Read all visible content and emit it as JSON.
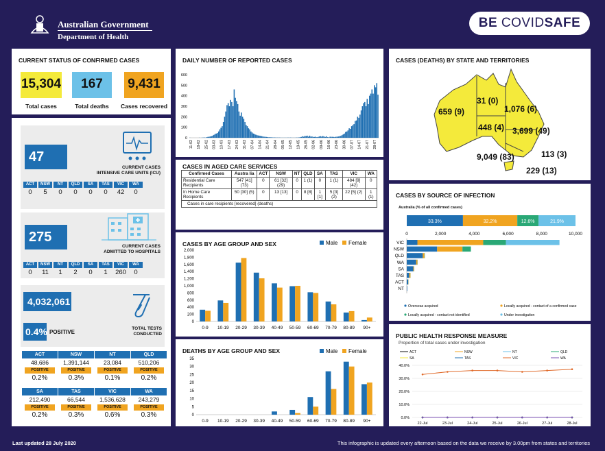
{
  "header": {
    "gov_title": "Australian Government",
    "dept_title": "Department of Health",
    "covidsafe_be": "BE",
    "covidsafe_word1": "COVID",
    "covidsafe_word2": "SAFE"
  },
  "current_status": {
    "title": "CURRENT STATUS OF CONFIRMED CASES",
    "total_cases": "15,304",
    "total_cases_label": "Total cases",
    "total_deaths": "167",
    "total_deaths_label": "Total deaths",
    "recovered": "9,431",
    "recovered_label": "Cases recovered",
    "colors": {
      "cases": "#f4ea3b",
      "deaths": "#6cc1e8",
      "recovered": "#f0a420"
    }
  },
  "icu": {
    "value": "47",
    "caption1": "CURRENT CASES",
    "caption2": "INTENSIVE CARE UNITS (ICU)",
    "states": [
      "ACT",
      "NSW",
      "NT",
      "QLD",
      "SA",
      "TAS",
      "VIC",
      "WA"
    ],
    "values": [
      "0",
      "5",
      "0",
      "0",
      "0",
      "0",
      "42",
      "0"
    ]
  },
  "hospital": {
    "value": "275",
    "caption1": "CURRENT CASES",
    "caption2": "ADMITTED TO HOSPITALS",
    "states": [
      "ACT",
      "NSW",
      "NT",
      "QLD",
      "SA",
      "TAS",
      "VIC",
      "WA"
    ],
    "values": [
      "0",
      "11",
      "1",
      "2",
      "0",
      "1",
      "260",
      "0"
    ]
  },
  "tests": {
    "total": "4,032,061",
    "positive_pct": "0.4%",
    "positive_label": "POSITIVE",
    "caption1": "TOTAL TESTS",
    "caption2": "CONDUCTED",
    "positive_tag": "POSITIVE",
    "row1": [
      {
        "state": "ACT",
        "tests": "48,686",
        "pct": "0.2%"
      },
      {
        "state": "NSW",
        "tests": "1,391,144",
        "pct": "0.3%"
      },
      {
        "state": "NT",
        "tests": "23,084",
        "pct": "0.1%"
      },
      {
        "state": "QLD",
        "tests": "510,206",
        "pct": "0.2%"
      }
    ],
    "row2": [
      {
        "state": "SA",
        "tests": "212,490",
        "pct": "0.2%"
      },
      {
        "state": "TAS",
        "tests": "66,544",
        "pct": "0.3%"
      },
      {
        "state": "VIC",
        "tests": "1,536,628",
        "pct": "0.6%"
      },
      {
        "state": "WA",
        "tests": "243,279",
        "pct": "0.3%"
      }
    ]
  },
  "daily": {
    "title": "DAILY NUMBER OF REPORTED CASES",
    "x_labels": [
      "11-02",
      "18-02",
      "25-02",
      "03-03",
      "10-03",
      "17-03",
      "24-03",
      "31-03",
      "07-04",
      "14-04",
      "21-04",
      "28-04",
      "05-05",
      "12-05",
      "19-05",
      "26-05",
      "02-06",
      "09-06",
      "16-06",
      "23-06",
      "30-06",
      "07-07",
      "14-07",
      "21-07",
      "28-07"
    ],
    "y_ticks": [
      "0",
      "100",
      "200",
      "300",
      "400",
      "500",
      "600"
    ]
  },
  "aged": {
    "title": "CASES IN AGED CARE SERVICES",
    "headers": [
      "Confirmed Cases",
      "Austra lia",
      "ACT",
      "NSW",
      "NT",
      "QLD",
      "SA",
      "TAS",
      "VIC",
      "WA"
    ],
    "rows": [
      [
        "Residential Care Recipients",
        "547 [41] (73)",
        "0",
        "61 [32] (29)",
        "0",
        "1 (1)",
        "0",
        "1 (1)",
        "484 [9] (42)",
        "0"
      ],
      [
        "In Home Care Recipients",
        "50 [30] (5)",
        "0",
        "13 [13]",
        "0",
        "8 [8]",
        "1 [1]",
        "5 [3] (2)",
        "22 [5] (2)",
        "1 (1)"
      ]
    ],
    "note": "Cases in care recipients [recovered] (deaths)"
  },
  "age_cases": {
    "title": "CASES BY AGE GROUP AND SEX",
    "male_label": "Male",
    "female_label": "Female",
    "y_ticks": [
      "0",
      "200",
      "400",
      "600",
      "800",
      "1,000",
      "1,200",
      "1,400",
      "1,600",
      "1,800",
      "2,000"
    ]
  },
  "age_deaths": {
    "title": "DEATHS BY AGE GROUP AND SEX",
    "male_label": "Male",
    "female_label": "Female",
    "y_ticks": [
      "0",
      "5",
      "10",
      "15",
      "20",
      "25",
      "30",
      "35"
    ]
  },
  "map": {
    "title": "CASES (DEATHS) BY STATE AND TERRITORIES",
    "labels": {
      "WA": "659 (9)",
      "NT": "31 (0)",
      "QLD": "1,076 (6)",
      "SA": "448 (4)",
      "NSW": "3,699 (49)",
      "ACT": "113 (3)",
      "VIC": "9,049 (83)",
      "TAS": "229 (13)"
    }
  },
  "source": {
    "title": "CASES BY SOURCE OF INFECTION",
    "subtitle": "Australia (% of all confirmed cases)",
    "pcts": [
      "33.3%",
      "32.2%",
      "12.6%",
      "21.9%"
    ],
    "x_ticks": [
      "0",
      "2,000",
      "4,000",
      "6,000",
      "8,000",
      "10,000"
    ],
    "states": [
      "VIC",
      "NSW",
      "QLD",
      "WA",
      "SA",
      "TAS",
      "ACT",
      "NT"
    ],
    "legend": [
      "Overseas acquired",
      "Locally acquired - contact of a confirmed case",
      "Locally acquired - contact not identified",
      "Under investigation"
    ],
    "colors": [
      "#1f6fb2",
      "#f0a420",
      "#2aa876",
      "#6cc1e8"
    ]
  },
  "response": {
    "title": "PUBLIC HEALTH RESPONSE MEASURE",
    "subtitle": "Proportion of total cases under investigation",
    "legend": [
      "ACT",
      "NSW",
      "NT",
      "QLD",
      "SA",
      "TAS",
      "VIC",
      "WA"
    ],
    "y_ticks": [
      "0.0%",
      "10.0%",
      "20.0%",
      "30.0%",
      "40.0%"
    ],
    "x_labels": [
      "22-Jul",
      "23-Jul",
      "24-Jul",
      "25-Jul",
      "26-Jul",
      "27-Jul",
      "28-Jul"
    ]
  },
  "footer": {
    "updated": "Last updated 28 July 2020",
    "note": "This infographic is updated every afternoon based on the data we receive by 3.00pm from states and territories"
  },
  "chart_data": [
    {
      "type": "bar",
      "title": "DAILY NUMBER OF REPORTED CASES",
      "ylim": [
        0,
        600
      ],
      "values": [
        1,
        0,
        0,
        0,
        0,
        0,
        0,
        0,
        1,
        0,
        1,
        2,
        3,
        1,
        5,
        8,
        10,
        12,
        15,
        20,
        27,
        35,
        40,
        45,
        60,
        80,
        95,
        110,
        150,
        200,
        250,
        310,
        330,
        300,
        360,
        340,
        300,
        460,
        380,
        350,
        320,
        250,
        210,
        240,
        200,
        180,
        150,
        120,
        110,
        90,
        80,
        60,
        50,
        40,
        35,
        30,
        25,
        22,
        20,
        18,
        15,
        12,
        10,
        9,
        8,
        6,
        5,
        5,
        4,
        3,
        3,
        3,
        2,
        2,
        2,
        2,
        1,
        1,
        1,
        1,
        1,
        1,
        2,
        1,
        2,
        1,
        1,
        1,
        1,
        2,
        2,
        3,
        5,
        8,
        14,
        10,
        17,
        16,
        20,
        10,
        20,
        11,
        12,
        8,
        8,
        10,
        6,
        8,
        12,
        15,
        11,
        16,
        12,
        8,
        14,
        6,
        4,
        10,
        9,
        9,
        8,
        7,
        10,
        10,
        12,
        15,
        18,
        25,
        32,
        40,
        55,
        60,
        70,
        90,
        85,
        110,
        120,
        130,
        160,
        165,
        200,
        190,
        220,
        260,
        300,
        330,
        340,
        300,
        370,
        320,
        400,
        420,
        460,
        420,
        500,
        480,
        520,
        410
      ],
      "x_start": "11-02",
      "x_end": "28-07"
    },
    {
      "type": "bar",
      "title": "CASES BY AGE GROUP AND SEX",
      "categories": [
        "0-9",
        "10-19",
        "20-29",
        "30-39",
        "40-49",
        "50-59",
        "60-69",
        "70-79",
        "80-89",
        "90+"
      ],
      "series": [
        {
          "name": "Male",
          "values": [
            330,
            590,
            1650,
            1370,
            1070,
            990,
            820,
            560,
            250,
            40
          ]
        },
        {
          "name": "Female",
          "values": [
            300,
            520,
            1780,
            1210,
            950,
            1000,
            800,
            480,
            290,
            110
          ]
        }
      ],
      "ylim": [
        0,
        2000
      ]
    },
    {
      "type": "bar",
      "title": "DEATHS BY AGE GROUP AND SEX",
      "categories": [
        "0-9",
        "10-19",
        "20-29",
        "30-39",
        "40-49",
        "50-59",
        "60-69",
        "70-79",
        "80-89",
        "90+"
      ],
      "series": [
        {
          "name": "Male",
          "values": [
            0,
            0,
            0,
            0,
            2,
            3,
            11,
            27,
            33,
            19
          ]
        },
        {
          "name": "Female",
          "values": [
            0,
            0,
            0,
            0,
            0,
            1,
            5,
            16,
            30,
            20
          ]
        }
      ],
      "ylim": [
        0,
        35
      ]
    },
    {
      "type": "bar",
      "title": "CASES BY SOURCE OF INFECTION",
      "categories": [
        "VIC",
        "NSW",
        "QLD",
        "WA",
        "SA",
        "TAS",
        "ACT",
        "NT"
      ],
      "series": [
        {
          "name": "Overseas acquired",
          "values": [
            630,
            1800,
            950,
            560,
            390,
            150,
            90,
            29
          ]
        },
        {
          "name": "Locally acquired - contact of a confirmed case",
          "values": [
            3900,
            1500,
            100,
            70,
            40,
            70,
            10,
            2
          ]
        },
        {
          "name": "Locally acquired - contact not identified",
          "values": [
            1350,
            500,
            20,
            10,
            10,
            5,
            5,
            0
          ]
        },
        {
          "name": "Under investigation",
          "values": [
            3170,
            0,
            0,
            0,
            0,
            0,
            0,
            0
          ]
        }
      ],
      "xlim": [
        0,
        10000
      ]
    },
    {
      "type": "line",
      "title": "PUBLIC HEALTH RESPONSE MEASURE",
      "x": [
        "22-Jul",
        "23-Jul",
        "24-Jul",
        "25-Jul",
        "26-Jul",
        "27-Jul",
        "28-Jul"
      ],
      "series": [
        {
          "name": "ACT",
          "values": [
            0,
            0,
            0,
            0,
            0,
            0,
            0
          ]
        },
        {
          "name": "NSW",
          "values": [
            0,
            0,
            0,
            0,
            0,
            0,
            0
          ]
        },
        {
          "name": "NT",
          "values": [
            0,
            0,
            0,
            0,
            0,
            0,
            0
          ]
        },
        {
          "name": "QLD",
          "values": [
            0,
            0,
            0,
            0,
            0,
            0,
            0
          ]
        },
        {
          "name": "SA",
          "values": [
            0,
            0,
            0,
            0,
            0,
            0,
            0
          ]
        },
        {
          "name": "TAS",
          "values": [
            0,
            0,
            0,
            0,
            0,
            0,
            0
          ]
        },
        {
          "name": "VIC",
          "values": [
            33,
            35,
            36,
            36,
            35,
            36,
            37
          ]
        },
        {
          "name": "WA",
          "values": [
            0,
            0,
            0,
            0,
            0,
            0,
            0
          ]
        }
      ],
      "ylim": [
        0,
        40
      ]
    }
  ]
}
